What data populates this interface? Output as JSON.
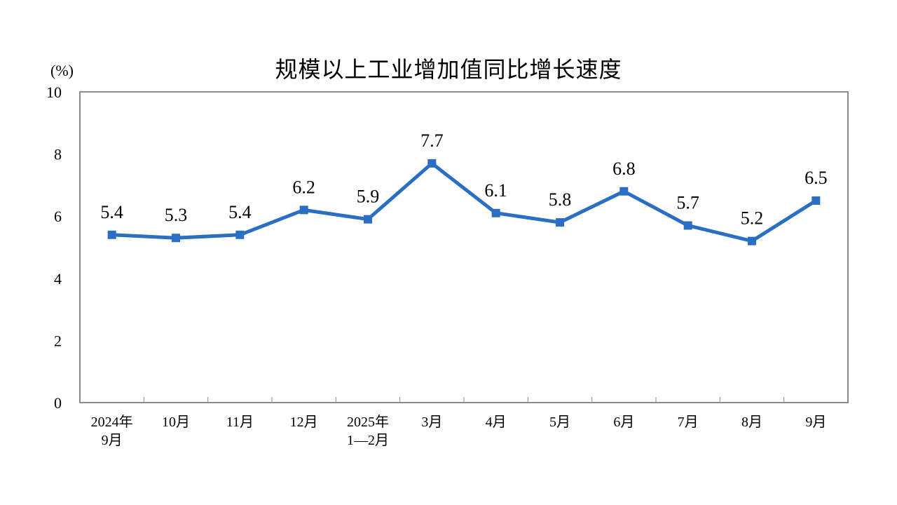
{
  "chart_data": {
    "type": "line",
    "title": "规模以上工业增加值同比增长速度",
    "ylabel": "(%)",
    "xlabel": "",
    "ylim": [
      0,
      10
    ],
    "yticks": [
      0,
      2,
      4,
      6,
      8,
      10
    ],
    "grid": false,
    "categories": [
      "2024年\n9月",
      "10月",
      "11月",
      "12月",
      "2025年\n1—2月",
      "3月",
      "4月",
      "5月",
      "6月",
      "7月",
      "8月",
      "9月"
    ],
    "series": [
      {
        "values": [
          5.4,
          5.3,
          5.4,
          6.2,
          5.9,
          7.7,
          6.1,
          5.8,
          6.8,
          5.7,
          5.2,
          6.5
        ],
        "color": "#2a6fc4"
      }
    ],
    "data_labels": [
      "5.4",
      "5.3",
      "5.4",
      "6.2",
      "5.9",
      "7.7",
      "6.1",
      "5.8",
      "6.8",
      "5.7",
      "5.2",
      "6.5"
    ],
    "marker": "square",
    "axis_color": "#8c8c8c"
  }
}
